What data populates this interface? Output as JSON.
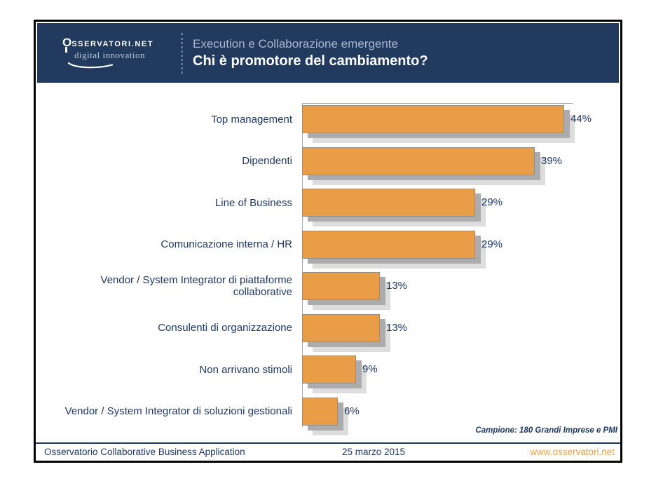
{
  "slide": {
    "logo": {
      "brand_o": "O",
      "brand_rest": "SSERVATORI.NET",
      "tagline": "digital innovation"
    },
    "header": {
      "subtitle": "Execution e Collaborazione emergente",
      "title": "Chi è promotore del cambiamento?"
    },
    "footnote": "Campione: 180 Grandi Imprese e PMI",
    "footer": {
      "left": "Osservatorio Collaborative Business Application",
      "center": "25 marzo 2015",
      "right": "www.osservatori.net"
    }
  },
  "chart_data": {
    "type": "bar",
    "orientation": "horizontal",
    "title": "Chi è promotore del cambiamento?",
    "categories": [
      "Top management",
      "Dipendenti",
      "Line of Business",
      "Comunicazione interna / HR",
      "Vendor / System Integrator di piattaforme collaborative",
      "Consulenti di organizzazione",
      "Non arrivano stimoli",
      "Vendor / System Integrator di soluzioni gestionali"
    ],
    "label_lines": [
      [
        "Top management"
      ],
      [
        "Dipendenti"
      ],
      [
        "Line of Business"
      ],
      [
        "Comunicazione interna / HR"
      ],
      [
        "Vendor / System Integrator di piattaforme",
        "collaborative"
      ],
      [
        "Consulenti di organizzazione"
      ],
      [
        "Non arrivano stimoli"
      ],
      [
        "Vendor / System Integrator di soluzioni gestionali"
      ]
    ],
    "values": [
      44,
      39,
      29,
      29,
      13,
      13,
      9,
      6
    ],
    "value_labels": [
      "44%",
      "39%",
      "29%",
      "29%",
      "13%",
      "13%",
      "9%",
      "6%"
    ],
    "unit": "percent",
    "xlim": [
      0,
      50
    ],
    "grid": false,
    "legend": false,
    "bar_style": "orange bars with gray drop shadows, value labels at bar ends"
  },
  "colors": {
    "header-bg": "#233A5F",
    "text-navy": "#1F3864",
    "subtitle": "#A8B8D0",
    "tagline": "#BCC9DC",
    "bar-orange": "#EA9D47",
    "url-orange": "#E8A04A",
    "shadow-med": "#ACACAC",
    "shadow-light": "#DDDDDD",
    "bar-border": "#909090",
    "axis-gray": "#AAAAAA"
  }
}
